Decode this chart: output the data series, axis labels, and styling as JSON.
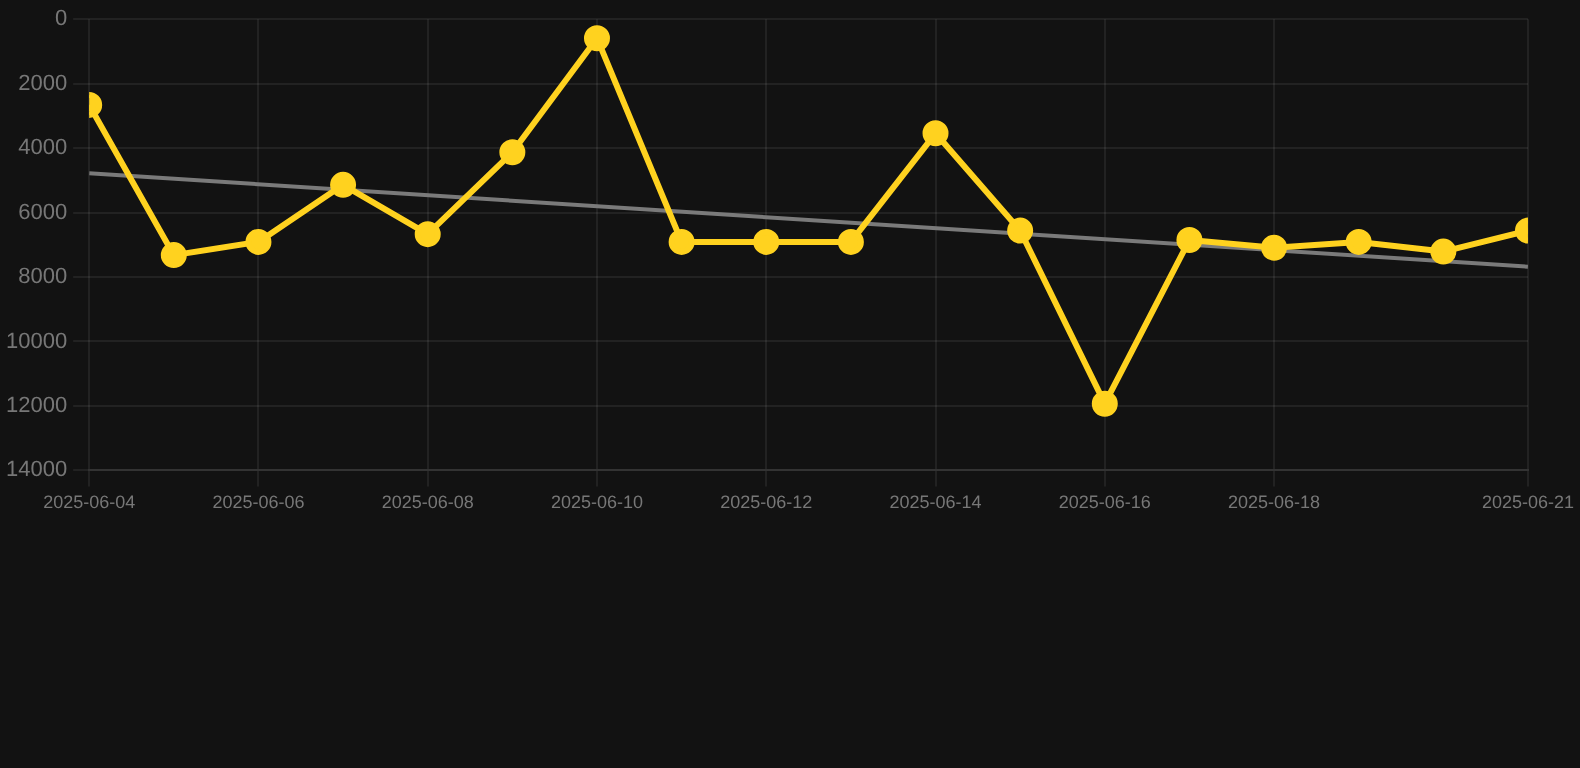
{
  "chart_data": {
    "type": "line",
    "x": [
      "2025-06-04",
      "2025-06-05",
      "2025-06-06",
      "2025-06-07",
      "2025-06-08",
      "2025-06-09",
      "2025-06-10",
      "2025-06-11",
      "2025-06-12",
      "2025-06-13",
      "2025-06-14",
      "2025-06-15",
      "2025-06-16",
      "2025-06-17",
      "2025-06-18",
      "2025-06-19",
      "2025-06-20",
      "2025-06-21"
    ],
    "series": [
      {
        "color": "#ffd21f",
        "marker": "circle",
        "values": [
          2660,
          7320,
          6910,
          5140,
          6670,
          4130,
          590,
          6910,
          6910,
          6910,
          3540,
          6560,
          11930,
          6850,
          7090,
          6910,
          7210,
          6560
        ]
      },
      {
        "type": "line",
        "color": "#7a7a7a",
        "marker": "none",
        "x": [
          "2025-06-04",
          "2025-06-21"
        ],
        "values": [
          4780,
          7680
        ]
      }
    ],
    "xlim": [
      "2025-06-04",
      "2025-06-21"
    ],
    "xticks": [
      "2025-06-04",
      "2025-06-06",
      "2025-06-08",
      "2025-06-10",
      "2025-06-12",
      "2025-06-14",
      "2025-06-16",
      "2025-06-18",
      "2025-06-21"
    ],
    "ylim": [
      14000,
      0
    ],
    "yticks": [
      0,
      2000,
      4000,
      6000,
      8000,
      10000,
      12000,
      14000
    ],
    "grid": true,
    "legend": false
  }
}
